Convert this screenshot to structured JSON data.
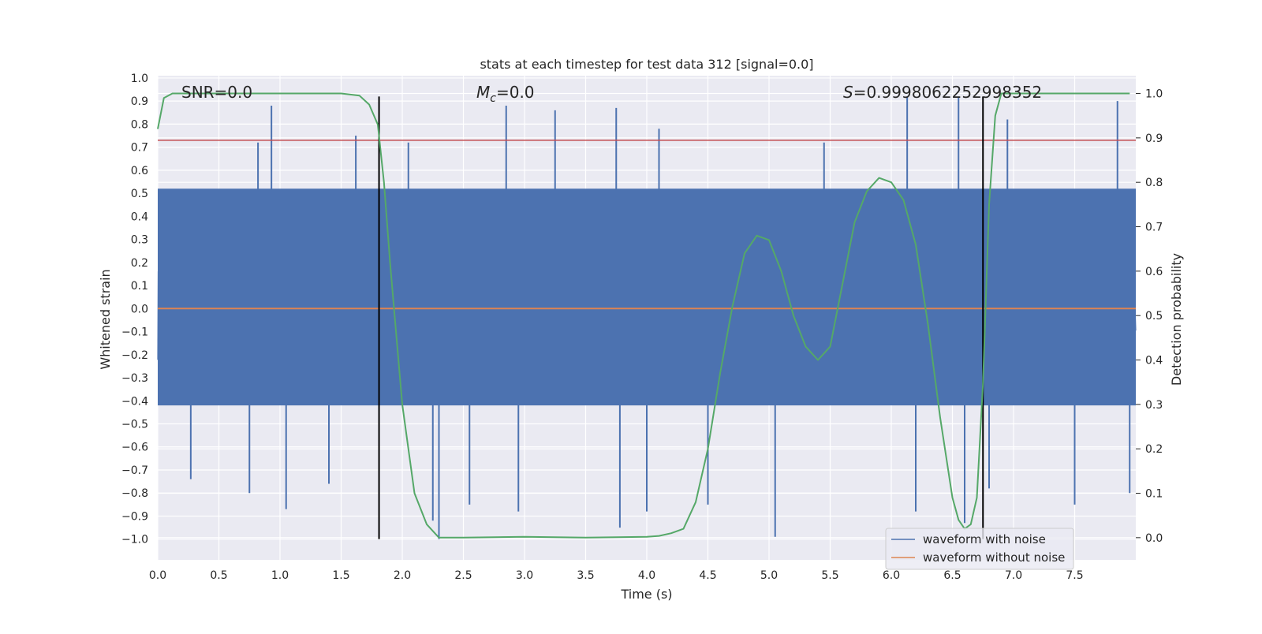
{
  "chart_data": {
    "type": "line",
    "title": "stats at each timestep for test data 312 [signal=0.0]",
    "xlabel": "Time (s)",
    "ylabel_left": "Whitened strain",
    "ylabel_right": "Detection probability",
    "xlim": [
      0.0,
      8.0
    ],
    "ylim_left": [
      -1.09,
      1.01
    ],
    "ylim_right": [
      -0.05,
      1.04
    ],
    "x_ticks": [
      "0.0",
      "0.5",
      "1.0",
      "1.5",
      "2.0",
      "2.5",
      "3.0",
      "3.5",
      "4.0",
      "4.5",
      "5.0",
      "5.5",
      "6.0",
      "6.5",
      "7.0",
      "7.5"
    ],
    "y_left_ticks": [
      "1.0",
      "0.9",
      "0.8",
      "0.7",
      "0.6",
      "0.5",
      "0.4",
      "0.3",
      "0.2",
      "0.1",
      "0.0",
      "−0.1",
      "−0.2",
      "−0.3",
      "−0.4",
      "−0.5",
      "−0.6",
      "−0.7",
      "−0.8",
      "−0.9",
      "−1.0"
    ],
    "y_right_ticks": [
      "0.0",
      "0.1",
      "0.2",
      "0.3",
      "0.4",
      "0.5",
      "0.6",
      "0.7",
      "0.8",
      "0.9",
      "1.0"
    ],
    "grid": true,
    "legend_placement": "lower-right",
    "annotations": {
      "snr": "SNR=0.0",
      "mc_symbol": "M",
      "mc_subscript": "c",
      "mc_value": "=0.0",
      "s_symbol": "S",
      "s_value": "=0.9998062252998352"
    },
    "series": [
      {
        "name": "waveform with noise",
        "axis": "left",
        "color": "#4c72b0",
        "note_band": [
          -0.42,
          0.52
        ],
        "spikes": [
          [
            0.93,
            0.88
          ],
          [
            0.82,
            0.72
          ],
          [
            1.62,
            0.75
          ],
          [
            2.05,
            0.72
          ],
          [
            2.85,
            0.88
          ],
          [
            3.25,
            0.86
          ],
          [
            3.75,
            0.87
          ],
          [
            4.1,
            0.78
          ],
          [
            5.45,
            0.72
          ],
          [
            6.13,
            0.92
          ],
          [
            6.55,
            0.92
          ],
          [
            6.95,
            0.82
          ],
          [
            7.85,
            0.9
          ],
          [
            0.27,
            -0.74
          ],
          [
            0.75,
            -0.8
          ],
          [
            1.05,
            -0.87
          ],
          [
            1.4,
            -0.76
          ],
          [
            2.25,
            -0.92
          ],
          [
            2.3,
            -1.0
          ],
          [
            2.55,
            -0.85
          ],
          [
            2.95,
            -0.88
          ],
          [
            3.78,
            -0.95
          ],
          [
            4.0,
            -0.88
          ],
          [
            4.5,
            -0.85
          ],
          [
            5.05,
            -0.99
          ],
          [
            6.2,
            -0.88
          ],
          [
            6.6,
            -0.93
          ],
          [
            6.8,
            -0.78
          ],
          [
            7.5,
            -0.85
          ],
          [
            7.95,
            -0.8
          ]
        ]
      },
      {
        "name": "waveform without noise",
        "axis": "left",
        "color": "#dd8452",
        "x": [
          0.0,
          8.0
        ],
        "y": [
          0.0,
          0.0
        ]
      },
      {
        "name": "",
        "axis": "right",
        "color": "#55a868",
        "x": [
          0.0,
          0.05,
          0.12,
          0.3,
          1.5,
          1.65,
          1.73,
          1.8,
          1.85,
          1.9,
          2.0,
          2.1,
          2.2,
          2.3,
          2.5,
          3.0,
          3.5,
          4.0,
          4.1,
          4.2,
          4.3,
          4.4,
          4.5,
          4.6,
          4.7,
          4.8,
          4.9,
          5.0,
          5.1,
          5.2,
          5.3,
          5.4,
          5.5,
          5.6,
          5.7,
          5.8,
          5.9,
          6.0,
          6.1,
          6.2,
          6.3,
          6.4,
          6.5,
          6.55,
          6.6,
          6.65,
          6.7,
          6.75,
          6.8,
          6.85,
          6.9,
          7.0,
          7.5,
          7.95
        ],
        "y": [
          0.92,
          0.99,
          1.0,
          1.0,
          1.0,
          0.995,
          0.975,
          0.93,
          0.8,
          0.62,
          0.3,
          0.1,
          0.03,
          0.0,
          0.0,
          0.002,
          0.0,
          0.002,
          0.004,
          0.01,
          0.02,
          0.08,
          0.2,
          0.37,
          0.52,
          0.64,
          0.68,
          0.67,
          0.6,
          0.5,
          0.43,
          0.4,
          0.43,
          0.57,
          0.71,
          0.78,
          0.81,
          0.8,
          0.76,
          0.66,
          0.48,
          0.27,
          0.09,
          0.04,
          0.02,
          0.03,
          0.09,
          0.35,
          0.75,
          0.95,
          1.0,
          1.0,
          1.0,
          1.0
        ]
      }
    ],
    "hlines": [
      {
        "axis": "left",
        "value": 0.73,
        "color": "#c44e52"
      }
    ],
    "vlines": [
      {
        "x": 1.81,
        "y_from": -1.0,
        "y_to": 0.92,
        "color": "#000000"
      },
      {
        "x": 6.75,
        "y_from": -1.0,
        "y_to": 0.92,
        "color": "#000000"
      }
    ],
    "legend": [
      {
        "label": "waveform with noise",
        "color": "#4c72b0"
      },
      {
        "label": "waveform without noise",
        "color": "#dd8452"
      }
    ]
  }
}
